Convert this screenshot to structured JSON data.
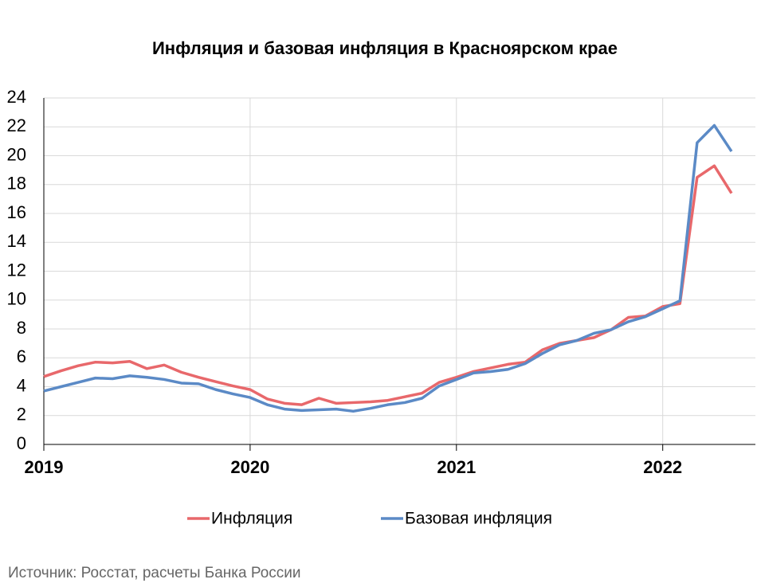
{
  "chart_data": {
    "type": "line",
    "title": "Инфляция и базовая инфляция в Красноярском крае",
    "source": "Источник: Росстат, расчеты Банка России",
    "categories": [
      "2019",
      null,
      null,
      null,
      null,
      null,
      null,
      null,
      null,
      null,
      null,
      null,
      "2020",
      null,
      null,
      null,
      null,
      null,
      null,
      null,
      null,
      null,
      null,
      null,
      "2021",
      null,
      null,
      null,
      null,
      null,
      null,
      null,
      null,
      null,
      null,
      null,
      "2022",
      null,
      null,
      null,
      null
    ],
    "series": [
      {
        "name": "Инфляция",
        "color": "#e8686b",
        "values": [
          4.7,
          5.1,
          5.45,
          5.7,
          5.65,
          5.75,
          5.25,
          5.5,
          5.0,
          4.65,
          4.35,
          4.05,
          3.8,
          3.15,
          2.85,
          2.75,
          3.2,
          2.85,
          2.9,
          2.95,
          3.05,
          3.3,
          3.55,
          4.3,
          4.65,
          5.05,
          5.3,
          5.55,
          5.7,
          6.55,
          7.0,
          7.2,
          7.4,
          7.95,
          8.8,
          8.9,
          9.55,
          9.75,
          18.5,
          19.3,
          17.4
        ]
      },
      {
        "name": "Базовая инфляция",
        "color": "#5b8ac6",
        "values": [
          3.7,
          4.0,
          4.3,
          4.6,
          4.55,
          4.75,
          4.65,
          4.5,
          4.25,
          4.2,
          3.8,
          3.5,
          3.25,
          2.75,
          2.45,
          2.35,
          2.4,
          2.45,
          2.3,
          2.5,
          2.75,
          2.9,
          3.2,
          4.05,
          4.5,
          4.95,
          5.05,
          5.2,
          5.6,
          6.3,
          6.9,
          7.2,
          7.7,
          7.95,
          8.5,
          8.85,
          9.4,
          9.95,
          20.9,
          22.1,
          20.3
        ]
      }
    ],
    "ylim": [
      0,
      24
    ],
    "yticks": [
      0,
      2,
      4,
      6,
      8,
      10,
      12,
      14,
      16,
      18,
      20,
      22,
      24
    ],
    "grid": true
  }
}
